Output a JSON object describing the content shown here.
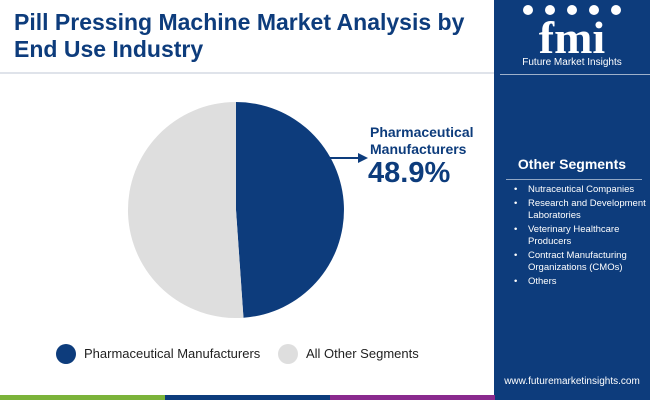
{
  "title": "Pill Pressing Machine Market Analysis by End Use Industry",
  "brand": {
    "logo_icon": "fmi-logo",
    "logo_text": "fmi",
    "name": "Future Market Insights",
    "website": "www.futuremarketinsights.com"
  },
  "colors": {
    "primary": "#0d3c7c",
    "other": "#dedede",
    "footer_green": "#7bb33a",
    "footer_purple": "#8a2a8e"
  },
  "callout": {
    "label": "Pharmaceutical Manufacturers",
    "value": "48.9%",
    "arrow_icon": "arrow-right-icon"
  },
  "other_segments": {
    "heading": "Other Segments",
    "bullet": "•",
    "items": [
      "Nutraceutical Companies",
      "Research and Development Laboratories",
      "Veterinary Healthcare Producers",
      "Contract Manufacturing Organizations (CMOs)",
      "Others"
    ]
  },
  "legend": [
    {
      "label": "Pharmaceutical Manufacturers",
      "color": "#0d3c7c"
    },
    {
      "label": "All Other Segments",
      "color": "#dedede"
    }
  ],
  "chart_data": {
    "type": "pie",
    "title": "Pill Pressing Machine Market Analysis by End Use Industry",
    "categories": [
      "Pharmaceutical Manufacturers",
      "All Other Segments"
    ],
    "values": [
      48.9,
      51.1
    ],
    "unit": "%",
    "colors": [
      "#0d3c7c",
      "#dedede"
    ],
    "start": "top",
    "direction": "clockwise",
    "data_labels": [
      {
        "category": "Pharmaceutical Manufacturers",
        "text": "48.9%"
      }
    ],
    "legend_position": "bottom"
  }
}
